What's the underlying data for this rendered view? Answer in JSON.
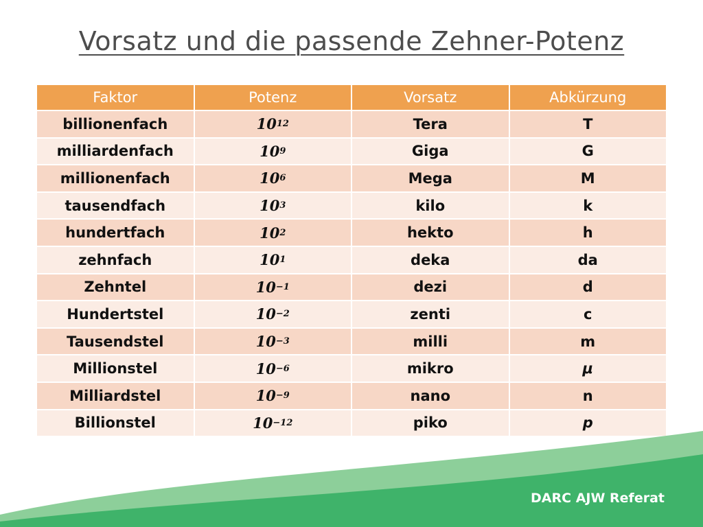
{
  "title": "Vorsatz und die passende Zehner-Potenz",
  "table": {
    "headers": [
      "Faktor",
      "Potenz",
      "Vorsatz",
      "Abkürzung"
    ],
    "rows": [
      {
        "faktor": "billionenfach",
        "base": "10",
        "exp": "12",
        "vorsatz": "Tera",
        "abk": "T"
      },
      {
        "faktor": "milliardenfach",
        "base": "10",
        "exp": "9",
        "vorsatz": "Giga",
        "abk": "G"
      },
      {
        "faktor": "millionenfach",
        "base": "10",
        "exp": "6",
        "vorsatz": "Mega",
        "abk": "M"
      },
      {
        "faktor": "tausendfach",
        "base": "10",
        "exp": "3",
        "vorsatz": "kilo",
        "abk": "k"
      },
      {
        "faktor": "hundertfach",
        "base": "10",
        "exp": "2",
        "vorsatz": "hekto",
        "abk": "h"
      },
      {
        "faktor": "zehnfach",
        "base": "10",
        "exp": "1",
        "vorsatz": "deka",
        "abk": "da"
      },
      {
        "faktor": "Zehntel",
        "base": "10",
        "exp": "−1",
        "vorsatz": "dezi",
        "abk": "d"
      },
      {
        "faktor": "Hundertstel",
        "base": "10",
        "exp": "−2",
        "vorsatz": "zenti",
        "abk": "c"
      },
      {
        "faktor": "Tausendstel",
        "base": "10",
        "exp": "−3",
        "vorsatz": "milli",
        "abk": "m"
      },
      {
        "faktor": "Millionstel",
        "base": "10",
        "exp": "−6",
        "vorsatz": "mikro",
        "abk": "μ"
      },
      {
        "faktor": "Milliardstel",
        "base": "10",
        "exp": "−9",
        "vorsatz": "nano",
        "abk": "n"
      },
      {
        "faktor": "Billionstel",
        "base": "10",
        "exp": "−12",
        "vorsatz": "piko",
        "abk": "p"
      }
    ]
  },
  "footer": "DARC AJW Referat",
  "colors": {
    "header": "#efa14f",
    "row_odd": "#f7d7c6",
    "row_even": "#fbece4",
    "wave_dark": "#3fb36a",
    "wave_light": "#8dcf9a"
  }
}
